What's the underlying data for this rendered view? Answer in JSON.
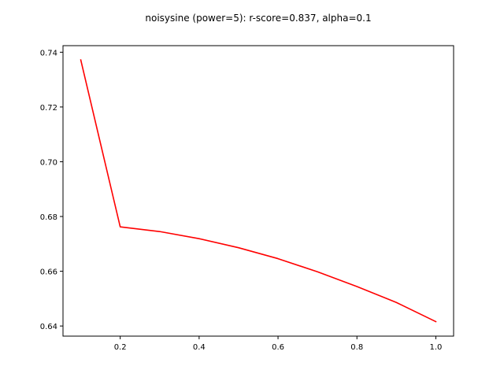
{
  "chart_data": {
    "type": "line",
    "title": "noisysine (power=5): r-score=0.837, alpha=0.1",
    "xlabel": "",
    "ylabel": "",
    "xlim": [
      0.055,
      1.045
    ],
    "ylim": [
      0.6363,
      0.7424
    ],
    "x_ticks": [
      0.2,
      0.4,
      0.6,
      0.8,
      1.0
    ],
    "x_tick_labels": [
      "0.2",
      "0.4",
      "0.6",
      "0.8",
      "1.0"
    ],
    "y_ticks": [
      0.64,
      0.66,
      0.68,
      0.7,
      0.72,
      0.74
    ],
    "y_tick_labels": [
      "0.64",
      "0.66",
      "0.68",
      "0.70",
      "0.72",
      "0.74"
    ],
    "grid": false,
    "series": [
      {
        "color": "#ff0000",
        "x": [
          0.1,
          0.2,
          0.3,
          0.4,
          0.5,
          0.6,
          0.7,
          0.8,
          0.9,
          1.0
        ],
        "y": [
          0.7372,
          0.6762,
          0.6745,
          0.6719,
          0.6686,
          0.6646,
          0.6598,
          0.6544,
          0.6486,
          0.6416
        ]
      }
    ]
  }
}
